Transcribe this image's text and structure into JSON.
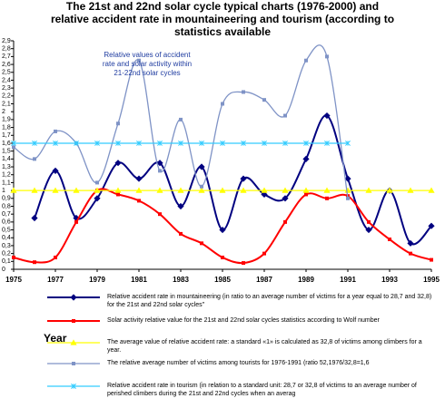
{
  "chart_data": {
    "type": "line",
    "title": [
      "The 21st and 22nd solar cycle typical charts (1976-2000) and",
      "relative accident rate in mountaineering and tourism (according to",
      "statistics available"
    ],
    "annotation": "Relative values of accident rate and solar activity within 21-22nd solar cycles",
    "xlabel": "Year",
    "x": [
      1975,
      1976,
      1977,
      1978,
      1979,
      1980,
      1981,
      1982,
      1983,
      1984,
      1985,
      1986,
      1987,
      1988,
      1989,
      1990,
      1991,
      1992,
      1993,
      1994,
      1995
    ],
    "xlim": [
      1975,
      1995
    ],
    "xticks": [
      1975,
      1977,
      1979,
      1981,
      1983,
      1985,
      1987,
      1989,
      1991,
      1993,
      1995
    ],
    "ylim": [
      0,
      2.9
    ],
    "yticks": [
      0,
      {
        "value": 0.1,
        "label": "0,1"
      },
      {
        "value": 0.2,
        "label": "0,2"
      },
      {
        "value": 0.3,
        "label": "0,3"
      },
      {
        "value": 0.4,
        "label": "0,4"
      },
      {
        "value": 0.5,
        "label": "0,5"
      },
      {
        "value": 0.6,
        "label": "0,6"
      },
      {
        "value": 0.7,
        "label": "0,7"
      },
      {
        "value": 0.8,
        "label": "0,8"
      },
      {
        "value": 0.9,
        "label": "0,9"
      },
      1,
      {
        "value": 1.1,
        "label": "1,1"
      },
      {
        "value": 1.2,
        "label": "1,2"
      },
      {
        "value": 1.3,
        "label": "1,3"
      },
      {
        "value": 1.4,
        "label": "1,4"
      },
      {
        "value": 1.5,
        "label": "1,5"
      },
      {
        "value": 1.6,
        "label": "1,6"
      },
      {
        "value": 1.7,
        "label": "1,7"
      },
      {
        "value": 1.8,
        "label": "1,8"
      },
      {
        "value": 1.9,
        "label": "1,9"
      },
      2,
      {
        "value": 2.1,
        "label": "2,1"
      },
      {
        "value": 2.2,
        "label": "2,2"
      },
      {
        "value": 2.3,
        "label": "2,3"
      },
      {
        "value": 2.4,
        "label": "2,4"
      },
      {
        "value": 2.5,
        "label": "2,5"
      },
      {
        "value": 2.6,
        "label": "2,6"
      },
      {
        "value": 2.7,
        "label": "2,7"
      },
      {
        "value": 2.8,
        "label": "2,8"
      },
      {
        "value": 2.9,
        "label": "2,9"
      }
    ],
    "grid": false,
    "series": [
      {
        "name": "Relative accident rate in mountaineering (in ratio to an average number of victims for a year equal to 28,7 and 32,8) for the 21st and 22nd solar cycles\"",
        "color": "#000080",
        "marker": "diamond",
        "values": [
          null,
          0.65,
          1.25,
          0.65,
          0.9,
          1.35,
          1.15,
          1.35,
          0.8,
          1.3,
          0.5,
          1.15,
          0.95,
          0.9,
          1.4,
          1.95,
          1.15,
          0.5,
          1.0,
          0.33,
          0.55
        ]
      },
      {
        "name": "Solar activity relative value for the 21st and 22nd solar cycles statistics according to Wolf number",
        "color": "#ff0000",
        "marker": "square",
        "values": [
          0.15,
          0.09,
          0.15,
          0.6,
          1.0,
          0.95,
          0.87,
          0.7,
          0.45,
          0.33,
          0.15,
          0.08,
          0.2,
          0.6,
          0.95,
          0.9,
          0.93,
          0.6,
          0.38,
          0.2,
          0.12
        ]
      },
      {
        "name": "The average value of relative accident rate: a standard «1» is calculated as 32,8 of victims among climbers for a year.",
        "color": "#ffff00",
        "marker": "triangle",
        "values": [
          1,
          1,
          1,
          1,
          1,
          1,
          1,
          1,
          1,
          1,
          1,
          1,
          1,
          1,
          1,
          1,
          1,
          1,
          1,
          1,
          1
        ]
      },
      {
        "name": "The relative average number of victims among tourists for 1976-1991 (ratio 52,1976/32,8=1,6",
        "color": "#7f93c6",
        "marker": "square",
        "values": [
          1.55,
          1.4,
          1.75,
          1.6,
          1.1,
          1.85,
          2.65,
          1.25,
          1.9,
          1.05,
          2.1,
          2.25,
          2.15,
          1.95,
          2.65,
          2.7,
          0.9,
          null,
          null,
          null,
          null
        ]
      },
      {
        "name": "Relative accident rate in tourism (in relation to a standard unit: 28,7 or 32,8 of victims to an average number of perished climbers during the 21st and 22nd cycles when an averag",
        "color": "#33ccff",
        "marker": "x",
        "values": [
          1.6,
          1.6,
          1.6,
          1.6,
          1.6,
          1.6,
          1.6,
          1.6,
          1.6,
          1.6,
          1.6,
          1.6,
          1.6,
          1.6,
          1.6,
          1.6,
          1.6,
          null,
          null,
          null,
          null
        ]
      }
    ]
  }
}
